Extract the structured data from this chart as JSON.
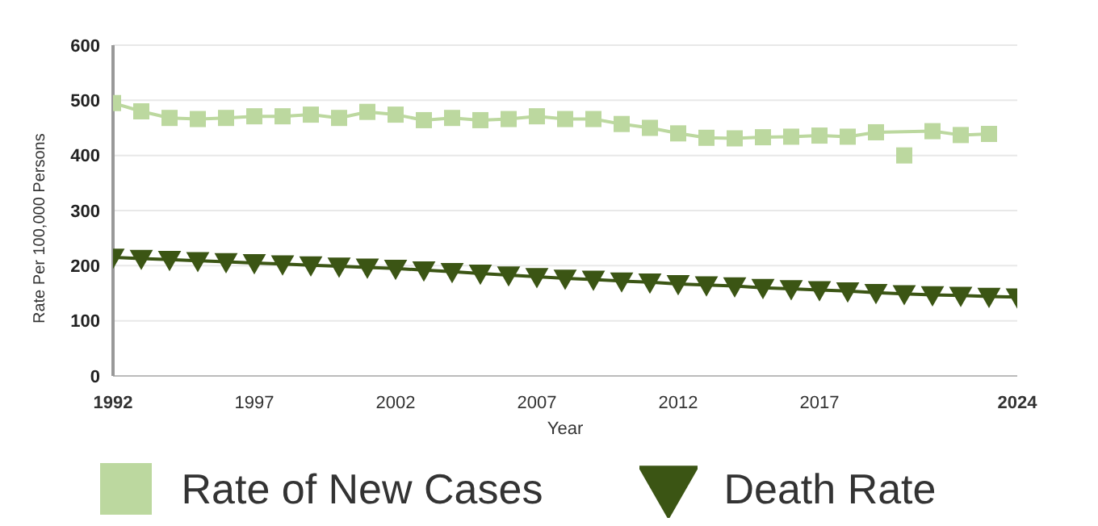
{
  "chart_data": {
    "type": "line",
    "xlabel": "Year",
    "ylabel": "Rate Per 100,000 Persons",
    "x": [
      1992,
      1993,
      1994,
      1995,
      1996,
      1997,
      1998,
      1999,
      2000,
      2001,
      2002,
      2003,
      2004,
      2005,
      2006,
      2007,
      2008,
      2009,
      2010,
      2011,
      2012,
      2013,
      2014,
      2015,
      2016,
      2017,
      2018,
      2019,
      2020,
      2021,
      2022,
      2023,
      2024
    ],
    "series": [
      {
        "name": "Rate of New Cases",
        "color": "#bcd89f",
        "marker": "square",
        "values": [
          495,
          480,
          468,
          466,
          468,
          471,
          471,
          474,
          468,
          479,
          474,
          464,
          468,
          464,
          466,
          471,
          466,
          466,
          457,
          450,
          440,
          432,
          431,
          433,
          434,
          436,
          434,
          442,
          null,
          444,
          437,
          439,
          null
        ]
      },
      {
        "type": "scatter",
        "color": "#bcd89f",
        "marker": "square",
        "values": [
          null,
          null,
          null,
          null,
          null,
          null,
          null,
          null,
          null,
          null,
          null,
          null,
          null,
          null,
          null,
          null,
          null,
          null,
          null,
          null,
          null,
          null,
          null,
          null,
          null,
          null,
          null,
          null,
          400,
          null,
          null,
          null,
          null
        ]
      },
      {
        "name": "Death Rate",
        "color": "#3b5514",
        "marker": "triangle",
        "values": [
          215,
          213,
          211,
          209,
          207,
          205,
          203,
          201,
          199,
          197,
          195,
          192,
          189,
          186,
          183,
          180,
          177,
          175,
          172,
          170,
          167,
          165,
          163,
          160,
          158,
          156,
          154,
          151,
          149,
          147,
          146,
          144,
          143
        ]
      }
    ],
    "xlim": [
      1992,
      2024
    ],
    "xticks": [
      1992,
      1997,
      2002,
      2007,
      2012,
      2017,
      2024
    ],
    "ylim": [
      0,
      600
    ],
    "yticks": [
      0,
      100,
      200,
      300,
      400,
      500,
      600
    ],
    "grid": "y",
    "legend": "bottom",
    "line_style": "solid"
  }
}
